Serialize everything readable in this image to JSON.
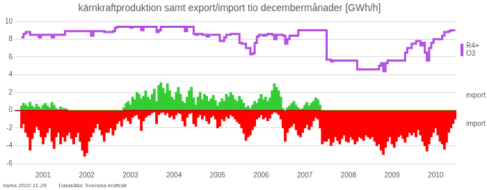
{
  "chart_data": {
    "type": "bar",
    "title": "kärnkraftproduktion samt export/import tio decembermånader [GWh/h]",
    "annotations": [
      "harka 2022-11-29",
      "Datakälla: Svenska kraftnät"
    ],
    "categories": [
      null,
      null,
      null,
      null,
      null,
      null,
      null,
      null,
      null,
      null,
      "2001",
      null,
      null,
      null,
      null,
      null,
      null,
      null,
      null,
      null,
      null,
      null,
      null,
      null,
      null,
      null,
      null,
      null,
      null,
      null,
      "2002",
      null,
      null,
      null,
      null,
      null,
      null,
      null,
      null,
      null,
      null,
      null,
      null,
      null,
      null,
      null,
      null,
      null,
      null,
      null,
      "2003",
      null,
      null,
      null,
      null,
      null,
      null,
      null,
      null,
      null,
      null,
      null,
      null,
      null,
      null,
      null,
      null,
      null,
      null,
      null,
      "2004",
      null,
      null,
      null,
      null,
      null,
      null,
      null,
      null,
      null,
      null,
      null,
      null,
      null,
      null,
      null,
      null,
      null,
      null,
      null,
      "2005",
      null,
      null,
      null,
      null,
      null,
      null,
      null,
      null,
      null,
      null,
      null,
      null,
      null,
      null,
      null,
      null,
      null,
      null,
      null,
      "2006",
      null,
      null,
      null,
      null,
      null,
      null,
      null,
      null,
      null,
      null,
      null,
      null,
      null,
      null,
      null,
      null,
      null,
      null,
      null,
      "2007",
      null,
      null,
      null,
      null,
      null,
      null,
      null,
      null,
      null,
      null,
      null,
      null,
      null,
      null,
      null,
      null,
      null,
      null,
      null,
      "2008",
      null,
      null,
      null,
      null,
      null,
      null,
      null,
      null,
      null,
      null,
      null,
      null,
      null,
      null,
      null,
      null,
      null,
      null,
      null,
      "2009",
      null,
      null,
      null,
      null,
      null,
      null,
      null,
      null,
      null,
      null,
      null,
      null,
      null,
      null,
      null,
      null,
      null,
      null,
      null,
      "2010",
      null,
      null,
      null,
      null,
      null,
      null,
      null,
      null,
      null
    ],
    "series": [
      {
        "name": "R4+ O3",
        "type": "line",
        "line_style": "step",
        "color": "#b44be1",
        "values": [
          8.2,
          8.6,
          8.8,
          8.8,
          8.5,
          8.5,
          8.5,
          8.5,
          8.2,
          8.5,
          8.5,
          8.5,
          8.5,
          8.5,
          8.2,
          8.5,
          8.5,
          8.5,
          8.5,
          8.5,
          8.9,
          8.9,
          8.9,
          8.9,
          8.9,
          8.9,
          8.9,
          8.9,
          8.9,
          8.9,
          8.9,
          8.9,
          8.4,
          8.9,
          8.9,
          8.9,
          8.9,
          8.9,
          8.8,
          8.8,
          8.8,
          8.8,
          8.9,
          9.3,
          9.4,
          9.4,
          9.4,
          9.4,
          9.4,
          9.4,
          9.3,
          9.4,
          9.4,
          9.4,
          9.4,
          9.0,
          9.4,
          9.4,
          9.4,
          9.4,
          9.4,
          9.4,
          8.8,
          9.0,
          9.4,
          9.4,
          9.4,
          9.4,
          9.4,
          9.4,
          9.4,
          9.4,
          9.4,
          9.4,
          9.4,
          8.9,
          9.4,
          9.4,
          9.4,
          8.6,
          8.5,
          8.6,
          8.6,
          8.5,
          8.5,
          8.3,
          8.5,
          8.5,
          8.5,
          8.5,
          8.5,
          7.8,
          7.8,
          8.2,
          8.5,
          8.5,
          8.6,
          8.6,
          8.6,
          8.6,
          7.6,
          7.5,
          7.5,
          7.0,
          7.0,
          6.3,
          6.4,
          7.6,
          8.3,
          8.5,
          8.5,
          8.4,
          8.5,
          8.6,
          8.6,
          8.5,
          8.0,
          8.5,
          8.5,
          8.5,
          8.4,
          7.5,
          8.0,
          8.4,
          8.4,
          8.4,
          8.4,
          9.0,
          9.0,
          9.0,
          9.0,
          9.0,
          9.0,
          9.0,
          9.0,
          9.0,
          9.0,
          9.0,
          9.0,
          9.0,
          5.7,
          5.7,
          5.5,
          5.6,
          5.6,
          5.6,
          5.6,
          5.6,
          5.6,
          5.6,
          5.6,
          5.6,
          5.6,
          5.6,
          4.6,
          4.6,
          4.6,
          4.6,
          4.6,
          4.6,
          4.6,
          4.6,
          4.6,
          4.6,
          5.0,
          5.3,
          4.4,
          5.3,
          5.6,
          5.6,
          5.6,
          5.6,
          5.6,
          5.6,
          5.6,
          5.6,
          6.5,
          7.0,
          7.0,
          7.5,
          7.5,
          7.8,
          7.8,
          7.3,
          7.6,
          6.5,
          5.6,
          7.0,
          7.6,
          8.0,
          8.0,
          8.0,
          8.0,
          8.4,
          8.8,
          8.8,
          8.9,
          9.0,
          9.0,
          9.0
        ]
      },
      {
        "name": "export",
        "type": "bar",
        "color": "#33cc33",
        "values": [
          0.5,
          0.8,
          0.6,
          0.4,
          0.9,
          0.5,
          0.3,
          0.7,
          0.4,
          0.2,
          0.6,
          0.8,
          0.5,
          0.3,
          0.9,
          0.6,
          0.2,
          0.1,
          0.4,
          0.2,
          0.2,
          0.1,
          0,
          0,
          0,
          0,
          0,
          0,
          0,
          0,
          0,
          0,
          0,
          0,
          0,
          0,
          0,
          0,
          0,
          0,
          0,
          0,
          0,
          0,
          0,
          0,
          0,
          0.3,
          0.8,
          1.0,
          0.6,
          1.5,
          1.2,
          2.0,
          1.8,
          1.3,
          1.6,
          2.2,
          1.5,
          1.2,
          1.8,
          2.4,
          1.0,
          2.8,
          3.1,
          2.5,
          1.9,
          3.0,
          2.2,
          1.5,
          1.2,
          2.0,
          2.6,
          1.8,
          1.0,
          0.8,
          1.5,
          2.2,
          2.6,
          1.4,
          0.6,
          1.5,
          2.0,
          1.2,
          1.8,
          1.6,
          1.0,
          1.3,
          1.7,
          1.1,
          0.5,
          0.9,
          1.3,
          1.0,
          1.8,
          1.5,
          2.0,
          1.7,
          1.2,
          1.0,
          1.6,
          1.2,
          0.8,
          0.3,
          0.5,
          0.2,
          0.6,
          1.0,
          0.8,
          1.3,
          1.8,
          1.2,
          1.5,
          1.0,
          1.4,
          2.2,
          3.0,
          2.6,
          2.2,
          1.5,
          0.2,
          0,
          0.3,
          0.5,
          0.8,
          1.0,
          0.6,
          0.3,
          0.1,
          0.2,
          0.6,
          0.9,
          0.5,
          0.8,
          1.0,
          1.4,
          1.2,
          0.6,
          0,
          0,
          0,
          0,
          0,
          0,
          0,
          0,
          0,
          0,
          0,
          0,
          0,
          0,
          0,
          0,
          0,
          0,
          0,
          0,
          0,
          0,
          0,
          0,
          0,
          0,
          0,
          0,
          0,
          0,
          0,
          0,
          0,
          0,
          0,
          0,
          0,
          0,
          0,
          0,
          0,
          0,
          0,
          0,
          0,
          0,
          0,
          0,
          0,
          0,
          0,
          0,
          0,
          0,
          0,
          0,
          0,
          0,
          0,
          0,
          0,
          0
        ]
      },
      {
        "name": "import",
        "type": "bar",
        "color": "#ff0000",
        "values": [
          -2.0,
          -1.5,
          -2.5,
          -3.0,
          -4.5,
          -3.2,
          -2.5,
          -1.8,
          -2.2,
          -3.0,
          -3.8,
          -3.0,
          -2.5,
          -2.0,
          -3.5,
          -4.3,
          -3.0,
          -2.5,
          -3.8,
          -3.0,
          -3.5,
          -2.8,
          -2.5,
          -3.2,
          -3.8,
          -3.0,
          -2.5,
          -3.5,
          -4.5,
          -5.2,
          -4.8,
          -3.5,
          -3.0,
          -2.5,
          -2.0,
          -1.5,
          -2.2,
          -2.8,
          -3.5,
          -2.5,
          -2.5,
          -2.0,
          -2.8,
          -2.2,
          -1.5,
          -1.2,
          -1.8,
          -1.0,
          -0.8,
          -1.2,
          -1.5,
          -0.8,
          -0.6,
          -0.5,
          -1.0,
          -2.3,
          -1.2,
          -0.8,
          -0.6,
          -0.5,
          -0.3,
          -0.2,
          -1.5,
          -0.5,
          -0.3,
          -0.2,
          -0.5,
          -0.3,
          -0.8,
          -0.6,
          -1.0,
          -0.5,
          -0.3,
          -0.4,
          -1.2,
          -1.8,
          -0.8,
          -0.4,
          -0.3,
          -1.5,
          -1.8,
          -0.8,
          -0.5,
          -1.0,
          -0.6,
          -1.2,
          -1.5,
          -0.8,
          -0.6,
          -1.0,
          -2.0,
          -1.8,
          -1.0,
          -1.2,
          -0.7,
          -0.9,
          -0.5,
          -0.7,
          -1.0,
          -1.3,
          -1.5,
          -2.0,
          -2.6,
          -3.4,
          -3.0,
          -2.8,
          -2.2,
          -1.8,
          -1.0,
          -0.8,
          -0.5,
          -1.0,
          -0.8,
          -1.2,
          -0.9,
          -0.4,
          -0.2,
          -0.3,
          -0.5,
          -1.0,
          -2.0,
          -3.5,
          -2.5,
          -2.0,
          -1.8,
          -1.5,
          -2.2,
          -2.8,
          -3.0,
          -2.5,
          -2.0,
          -1.6,
          -2.2,
          -1.8,
          -1.2,
          -0.8,
          -1.0,
          -2.0,
          -3.8,
          -3.5,
          -3.5,
          -3.2,
          -4.0,
          -3.6,
          -3.0,
          -3.4,
          -3.8,
          -3.2,
          -2.8,
          -3.5,
          -3.6,
          -3.0,
          -3.3,
          -3.8,
          -3.5,
          -3.0,
          -3.2,
          -3.4,
          -2.8,
          -3.0,
          -3.2,
          -3.0,
          -3.5,
          -4.0,
          -3.8,
          -4.5,
          -5.0,
          -4.2,
          -3.5,
          -3.0,
          -3.8,
          -4.2,
          -3.5,
          -3.0,
          -2.8,
          -3.2,
          -3.6,
          -3.0,
          -2.5,
          -2.8,
          -2.5,
          -3.0,
          -2.2,
          -2.8,
          -3.5,
          -4.0,
          -4.6,
          -3.8,
          -3.0,
          -2.5,
          -2.0,
          -2.8,
          -3.5,
          -3.8,
          -4.4,
          -3.6,
          -2.5,
          -2.0,
          -1.5,
          -1.0
        ]
      }
    ],
    "ylim": [
      -6,
      10
    ],
    "yticks": [
      -6,
      -4,
      -2,
      0,
      2,
      4,
      6,
      8,
      10
    ],
    "grid": true,
    "stacked": true,
    "legend": "right"
  }
}
